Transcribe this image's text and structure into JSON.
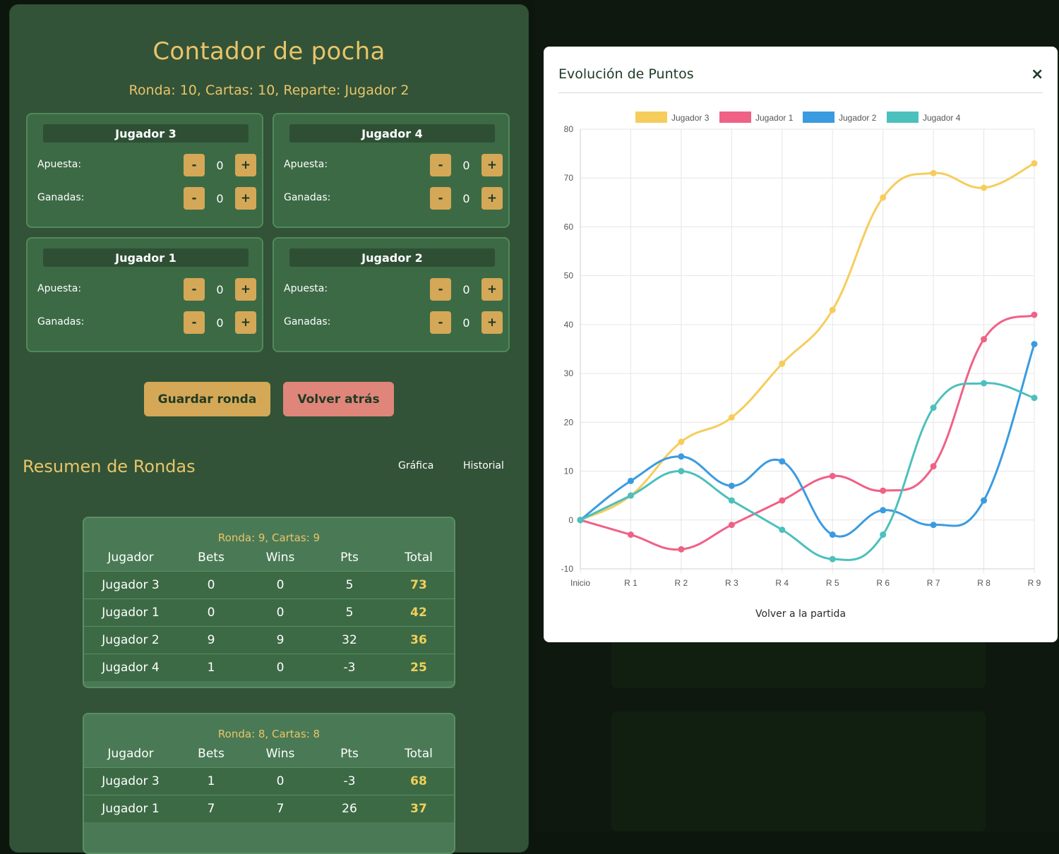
{
  "app": {
    "title": "Contador de pocha",
    "round_info": "Ronda: 10, Cartas: 10, Reparte: Jugador 2"
  },
  "players": [
    {
      "name": "Jugador 3",
      "bet_label": "Apuesta:",
      "won_label": "Ganadas:",
      "bet": "0",
      "won": "0"
    },
    {
      "name": "Jugador 4",
      "bet_label": "Apuesta:",
      "won_label": "Ganadas:",
      "bet": "0",
      "won": "0"
    },
    {
      "name": "Jugador 1",
      "bet_label": "Apuesta:",
      "won_label": "Ganadas:",
      "bet": "0",
      "won": "0"
    },
    {
      "name": "Jugador 2",
      "bet_label": "Apuesta:",
      "won_label": "Ganadas:",
      "bet": "0",
      "won": "0"
    }
  ],
  "stepper": {
    "minus": "-",
    "plus": "+"
  },
  "actions": {
    "save_label": "Guardar ronda",
    "back_label": "Volver atrás"
  },
  "summary": {
    "title": "Resumen de Rondas",
    "chart_link": "Gráfica",
    "history_link": "Historial",
    "columns": [
      "Jugador",
      "Bets",
      "Wins",
      "Pts",
      "Total"
    ],
    "rounds": [
      {
        "header": "Ronda: 9, Cartas: 9",
        "rows": [
          [
            "Jugador 3",
            "0",
            "0",
            "5",
            "73"
          ],
          [
            "Jugador 1",
            "0",
            "0",
            "5",
            "42"
          ],
          [
            "Jugador 2",
            "9",
            "9",
            "32",
            "36"
          ],
          [
            "Jugador 4",
            "1",
            "0",
            "-3",
            "25"
          ]
        ]
      },
      {
        "header": "Ronda: 8, Cartas: 8",
        "rows": [
          [
            "Jugador 3",
            "1",
            "0",
            "-3",
            "68"
          ],
          [
            "Jugador 1",
            "7",
            "7",
            "26",
            "37"
          ]
        ]
      }
    ]
  },
  "modal": {
    "title": "Evolución de Puntos",
    "close": "×",
    "back_label": "Volver a la partida"
  },
  "colors": {
    "accent": "#e9c46a",
    "button_gold": "#d4a857",
    "button_red": "#e0857a",
    "panel": "#325337"
  },
  "chart_data": {
    "type": "line",
    "title": "",
    "categories": [
      "Inicio",
      "R 1",
      "R 2",
      "R 3",
      "R 4",
      "R 5",
      "R 6",
      "R 7",
      "R 8",
      "R 9"
    ],
    "ylim": [
      -10,
      80
    ],
    "yticks": [
      -10,
      0,
      10,
      20,
      30,
      40,
      50,
      60,
      70,
      80
    ],
    "grid": true,
    "legend": "top",
    "series": [
      {
        "name": "Jugador 3",
        "color": "#f6cd5c",
        "values": [
          0,
          5,
          16,
          21,
          32,
          43,
          66,
          71,
          68,
          73
        ]
      },
      {
        "name": "Jugador 1",
        "color": "#f06186",
        "values": [
          0,
          -3,
          -6,
          -1,
          4,
          9,
          6,
          11,
          37,
          42
        ]
      },
      {
        "name": "Jugador 2",
        "color": "#3a9be0",
        "values": [
          0,
          8,
          13,
          7,
          12,
          -3,
          2,
          -1,
          4,
          36
        ]
      },
      {
        "name": "Jugador 4",
        "color": "#4cc0bd",
        "values": [
          0,
          5,
          10,
          4,
          -2,
          -8,
          -3,
          23,
          28,
          25
        ]
      }
    ]
  }
}
